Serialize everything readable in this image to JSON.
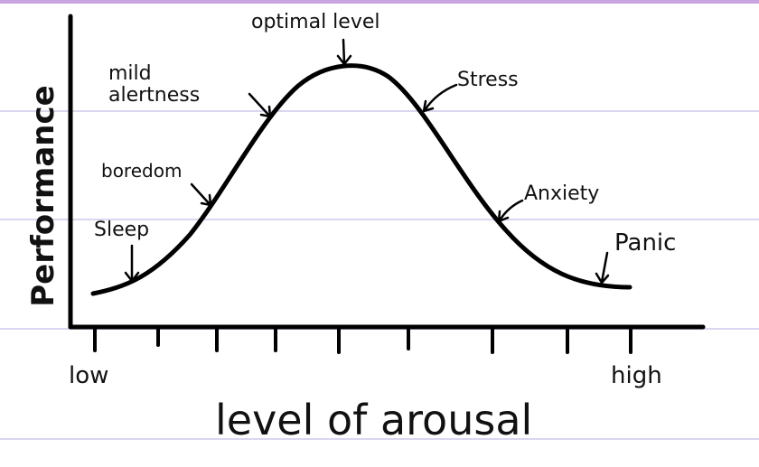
{
  "y_axis": {
    "label": "Performance"
  },
  "x_axis": {
    "label": "level of arousal",
    "low": "low",
    "high": "high"
  },
  "annotations": [
    {
      "label": "optimal level"
    },
    {
      "label": "mild alertness"
    },
    {
      "label": "Stress"
    },
    {
      "label": "boredom"
    },
    {
      "label": "Anxiety"
    },
    {
      "label": "Sleep"
    },
    {
      "label": "Panic"
    }
  ]
}
